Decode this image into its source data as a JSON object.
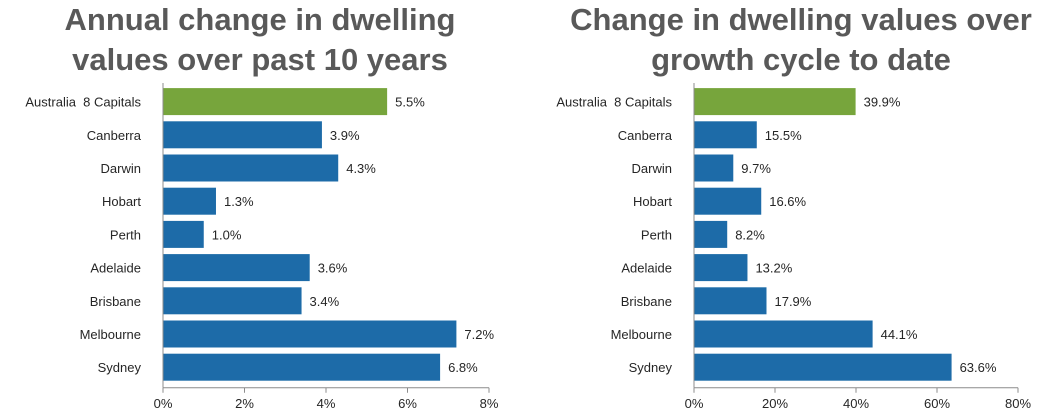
{
  "chart_data": [
    {
      "type": "bar",
      "orientation": "horizontal",
      "title": "Annual change in dwelling values over past 10 years",
      "title_lines": [
        "Annual change in dwelling",
        "values over past 10 years"
      ],
      "categories": [
        "Australia  8 Capitals",
        "Canberra",
        "Darwin",
        "Hobart",
        "Perth",
        "Adelaide",
        "Brisbane",
        "Melbourne",
        "Sydney"
      ],
      "values": [
        5.5,
        3.9,
        4.3,
        1.3,
        1.0,
        3.6,
        3.4,
        7.2,
        6.8
      ],
      "value_labels": [
        "5.5%",
        "3.9%",
        "4.3%",
        "1.3%",
        "1.0%",
        "3.6%",
        "3.4%",
        "7.2%",
        "6.8%"
      ],
      "xlim": [
        0,
        8
      ],
      "xticks": [
        0,
        2,
        4,
        6,
        8
      ],
      "xtick_labels": [
        "0%",
        "2%",
        "4%",
        "6%",
        "8%"
      ],
      "xlabel": "",
      "ylabel": "",
      "grid": false,
      "highlight_index": 0
    },
    {
      "type": "bar",
      "orientation": "horizontal",
      "title": "Change in dwelling values over growth cycle to date",
      "title_lines": [
        "Change in dwelling values over",
        "growth cycle to date"
      ],
      "categories": [
        "Australia  8 Capitals",
        "Canberra",
        "Darwin",
        "Hobart",
        "Perth",
        "Adelaide",
        "Brisbane",
        "Melbourne",
        "Sydney"
      ],
      "values": [
        39.9,
        15.5,
        9.7,
        16.6,
        8.2,
        13.2,
        17.9,
        44.1,
        63.6
      ],
      "value_labels": [
        "39.9%",
        "15.5%",
        "9.7%",
        "16.6%",
        "8.2%",
        "13.2%",
        "17.9%",
        "44.1%",
        "63.6%"
      ],
      "xlim": [
        0,
        80
      ],
      "xticks": [
        0,
        20,
        40,
        60,
        80
      ],
      "xtick_labels": [
        "0%",
        "20%",
        "40%",
        "60%",
        "80%"
      ],
      "xlabel": "",
      "ylabel": "",
      "grid": false,
      "highlight_index": 0
    }
  ],
  "colors": {
    "highlight_bar": "#77A53C",
    "bar": "#1D6BA8",
    "axis": "#8C8C8C",
    "title": "#595959"
  }
}
